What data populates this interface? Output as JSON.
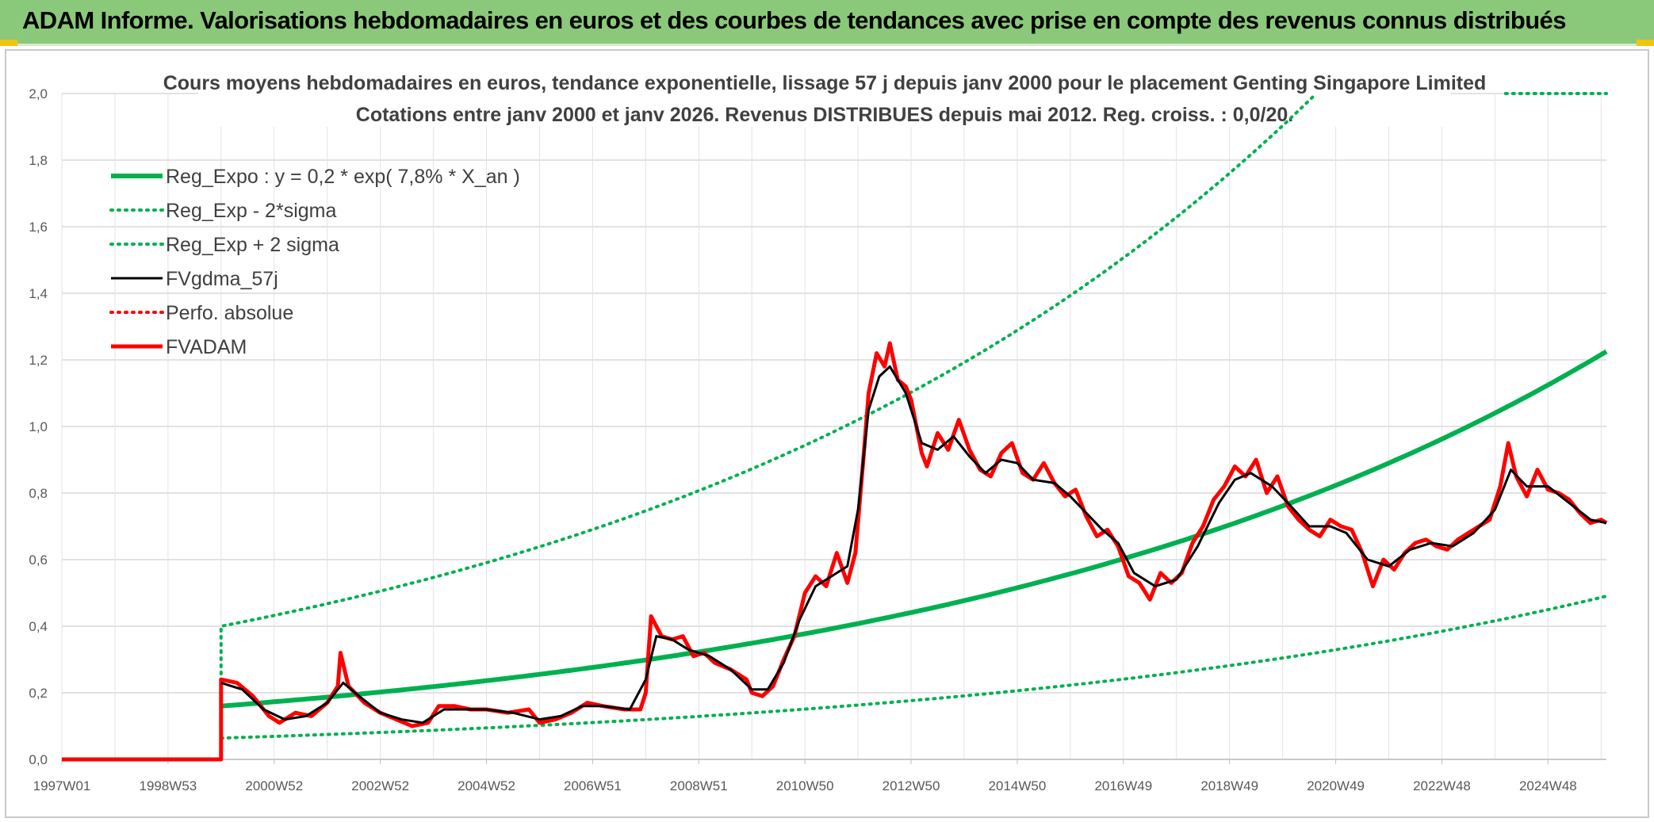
{
  "header": {
    "title": "ADAM Informe. Valorisations hebdomadaires en euros et des courbes de tendances avec prise en compte des revenus connus distribués"
  },
  "chart_data": {
    "type": "line",
    "title_line1": "Cours moyens hebdomadaires en euros, tendance exponentielle, lissage 57 j depuis janv 2000 pour le placement Genting Singapore Limited",
    "title_line2": "Cotations entre janv 2000 et janv 2026. Revenus DISTRIBUES depuis mai 2012. Reg. croiss. : 0,0/20.",
    "ylim": [
      0,
      2.0
    ],
    "xlim": [
      1997.0,
      2026.1
    ],
    "y_ticks": [
      "0,0",
      "0,2",
      "0,4",
      "0,6",
      "0,8",
      "1,0",
      "1,2",
      "1,4",
      "1,6",
      "1,8",
      "2,0"
    ],
    "x_ticks": [
      {
        "label": "1997W01",
        "x": 1997.0
      },
      {
        "label": "1998W53",
        "x": 1999.0
      },
      {
        "label": "2000W52",
        "x": 2001.0
      },
      {
        "label": "2002W52",
        "x": 2003.0
      },
      {
        "label": "2004W52",
        "x": 2005.0
      },
      {
        "label": "2006W51",
        "x": 2007.0
      },
      {
        "label": "2008W51",
        "x": 2009.0
      },
      {
        "label": "2010W50",
        "x": 2011.0
      },
      {
        "label": "2012W50",
        "x": 2013.0
      },
      {
        "label": "2014W50",
        "x": 2015.0
      },
      {
        "label": "2016W49",
        "x": 2017.0
      },
      {
        "label": "2018W49",
        "x": 2019.0
      },
      {
        "label": "2020W49",
        "x": 2021.0
      },
      {
        "label": "2022W48",
        "x": 2023.0
      },
      {
        "label": "2024W48",
        "x": 2025.0
      }
    ],
    "grid": true,
    "legend_position": "top-left",
    "colors": {
      "green": "#00b050",
      "red": "#ff0000",
      "black": "#000000",
      "grid": "#d9d9d9"
    },
    "series": [
      {
        "name": "Reg_Expo : y = 0,2 * exp( 7,8% *  X_an )",
        "style": "solid",
        "color": "#00b050",
        "start": 2000.0,
        "a": 0.16,
        "rate": 0.078
      },
      {
        "name": "Reg_Exp - 2*sigma",
        "style": "dotted",
        "color": "#00b050",
        "start": 2000.0,
        "a": 0.064,
        "rate": 0.078
      },
      {
        "name": "Reg_Exp + 2 sigma",
        "style": "dotted",
        "color": "#00b050",
        "start": 2000.0,
        "a": 0.4,
        "rate": 0.078
      },
      {
        "name": "FVgdma_57j",
        "style": "solid",
        "color": "#000000",
        "width": 3
      },
      {
        "name": "Perfo. absolue",
        "style": "dotted",
        "color": "#ff0000"
      },
      {
        "name": "FVADAM",
        "style": "solid",
        "color": "#ff0000",
        "width": 5
      }
    ],
    "price_points": [
      [
        1997.0,
        0.0
      ],
      [
        2000.0,
        0.0
      ],
      [
        2000.0,
        0.24
      ],
      [
        2000.3,
        0.23
      ],
      [
        2000.6,
        0.19
      ],
      [
        2000.9,
        0.13
      ],
      [
        2001.1,
        0.11
      ],
      [
        2001.4,
        0.14
      ],
      [
        2001.7,
        0.13
      ],
      [
        2002.0,
        0.17
      ],
      [
        2002.2,
        0.22
      ],
      [
        2002.25,
        0.32
      ],
      [
        2002.4,
        0.22
      ],
      [
        2002.7,
        0.17
      ],
      [
        2003.0,
        0.14
      ],
      [
        2003.3,
        0.12
      ],
      [
        2003.6,
        0.1
      ],
      [
        2003.9,
        0.11
      ],
      [
        2004.1,
        0.16
      ],
      [
        2004.4,
        0.16
      ],
      [
        2004.7,
        0.15
      ],
      [
        2005.0,
        0.15
      ],
      [
        2005.4,
        0.14
      ],
      [
        2005.8,
        0.15
      ],
      [
        2006.0,
        0.11
      ],
      [
        2006.3,
        0.12
      ],
      [
        2006.6,
        0.14
      ],
      [
        2006.9,
        0.17
      ],
      [
        2007.2,
        0.16
      ],
      [
        2007.6,
        0.15
      ],
      [
        2007.9,
        0.15
      ],
      [
        2008.0,
        0.2
      ],
      [
        2008.1,
        0.43
      ],
      [
        2008.3,
        0.37
      ],
      [
        2008.5,
        0.36
      ],
      [
        2008.7,
        0.37
      ],
      [
        2008.9,
        0.31
      ],
      [
        2009.1,
        0.32
      ],
      [
        2009.3,
        0.29
      ],
      [
        2009.6,
        0.27
      ],
      [
        2009.9,
        0.24
      ],
      [
        2010.0,
        0.2
      ],
      [
        2010.2,
        0.19
      ],
      [
        2010.4,
        0.22
      ],
      [
        2010.6,
        0.3
      ],
      [
        2010.8,
        0.37
      ],
      [
        2011.0,
        0.5
      ],
      [
        2011.2,
        0.55
      ],
      [
        2011.4,
        0.52
      ],
      [
        2011.6,
        0.62
      ],
      [
        2011.8,
        0.53
      ],
      [
        2011.95,
        0.62
      ],
      [
        2012.1,
        0.9
      ],
      [
        2012.2,
        1.1
      ],
      [
        2012.35,
        1.22
      ],
      [
        2012.5,
        1.18
      ],
      [
        2012.6,
        1.25
      ],
      [
        2012.75,
        1.14
      ],
      [
        2012.9,
        1.12
      ],
      [
        2013.0,
        1.08
      ],
      [
        2013.2,
        0.92
      ],
      [
        2013.3,
        0.88
      ],
      [
        2013.5,
        0.98
      ],
      [
        2013.7,
        0.93
      ],
      [
        2013.9,
        1.02
      ],
      [
        2014.1,
        0.93
      ],
      [
        2014.3,
        0.87
      ],
      [
        2014.5,
        0.85
      ],
      [
        2014.7,
        0.92
      ],
      [
        2014.9,
        0.95
      ],
      [
        2015.1,
        0.86
      ],
      [
        2015.3,
        0.84
      ],
      [
        2015.5,
        0.89
      ],
      [
        2015.7,
        0.83
      ],
      [
        2015.9,
        0.79
      ],
      [
        2016.1,
        0.81
      ],
      [
        2016.3,
        0.73
      ],
      [
        2016.5,
        0.67
      ],
      [
        2016.7,
        0.69
      ],
      [
        2016.9,
        0.64
      ],
      [
        2017.1,
        0.55
      ],
      [
        2017.3,
        0.53
      ],
      [
        2017.5,
        0.48
      ],
      [
        2017.7,
        0.56
      ],
      [
        2017.9,
        0.53
      ],
      [
        2018.1,
        0.56
      ],
      [
        2018.3,
        0.65
      ],
      [
        2018.5,
        0.7
      ],
      [
        2018.7,
        0.78
      ],
      [
        2018.9,
        0.82
      ],
      [
        2019.1,
        0.88
      ],
      [
        2019.3,
        0.85
      ],
      [
        2019.5,
        0.9
      ],
      [
        2019.7,
        0.8
      ],
      [
        2019.9,
        0.85
      ],
      [
        2020.1,
        0.76
      ],
      [
        2020.3,
        0.72
      ],
      [
        2020.5,
        0.69
      ],
      [
        2020.7,
        0.67
      ],
      [
        2020.9,
        0.72
      ],
      [
        2021.1,
        0.7
      ],
      [
        2021.3,
        0.69
      ],
      [
        2021.5,
        0.62
      ],
      [
        2021.7,
        0.52
      ],
      [
        2021.9,
        0.6
      ],
      [
        2022.1,
        0.57
      ],
      [
        2022.3,
        0.62
      ],
      [
        2022.5,
        0.65
      ],
      [
        2022.7,
        0.66
      ],
      [
        2022.9,
        0.64
      ],
      [
        2023.1,
        0.63
      ],
      [
        2023.3,
        0.66
      ],
      [
        2023.5,
        0.68
      ],
      [
        2023.7,
        0.7
      ],
      [
        2023.9,
        0.72
      ],
      [
        2024.1,
        0.82
      ],
      [
        2024.25,
        0.95
      ],
      [
        2024.4,
        0.85
      ],
      [
        2024.6,
        0.79
      ],
      [
        2024.8,
        0.87
      ],
      [
        2025.0,
        0.81
      ],
      [
        2025.2,
        0.8
      ],
      [
        2025.4,
        0.78
      ],
      [
        2025.6,
        0.74
      ],
      [
        2025.8,
        0.71
      ],
      [
        2026.0,
        0.72
      ],
      [
        2026.1,
        0.71
      ]
    ],
    "smooth_points": [
      [
        2000.0,
        0.23
      ],
      [
        2000.4,
        0.21
      ],
      [
        2000.8,
        0.15
      ],
      [
        2001.2,
        0.12
      ],
      [
        2001.6,
        0.13
      ],
      [
        2002.0,
        0.17
      ],
      [
        2002.3,
        0.23
      ],
      [
        2002.6,
        0.19
      ],
      [
        2003.0,
        0.14
      ],
      [
        2003.4,
        0.12
      ],
      [
        2003.8,
        0.11
      ],
      [
        2004.2,
        0.15
      ],
      [
        2004.6,
        0.15
      ],
      [
        2005.0,
        0.15
      ],
      [
        2005.5,
        0.14
      ],
      [
        2006.0,
        0.12
      ],
      [
        2006.4,
        0.13
      ],
      [
        2006.8,
        0.16
      ],
      [
        2007.2,
        0.16
      ],
      [
        2007.7,
        0.15
      ],
      [
        2008.0,
        0.24
      ],
      [
        2008.2,
        0.37
      ],
      [
        2008.5,
        0.36
      ],
      [
        2008.8,
        0.33
      ],
      [
        2009.2,
        0.31
      ],
      [
        2009.6,
        0.27
      ],
      [
        2010.0,
        0.21
      ],
      [
        2010.3,
        0.21
      ],
      [
        2010.6,
        0.29
      ],
      [
        2010.9,
        0.42
      ],
      [
        2011.2,
        0.52
      ],
      [
        2011.5,
        0.55
      ],
      [
        2011.8,
        0.58
      ],
      [
        2012.0,
        0.75
      ],
      [
        2012.2,
        1.05
      ],
      [
        2012.4,
        1.15
      ],
      [
        2012.6,
        1.18
      ],
      [
        2012.9,
        1.1
      ],
      [
        2013.2,
        0.95
      ],
      [
        2013.5,
        0.93
      ],
      [
        2013.8,
        0.97
      ],
      [
        2014.1,
        0.91
      ],
      [
        2014.4,
        0.86
      ],
      [
        2014.7,
        0.9
      ],
      [
        2015.0,
        0.89
      ],
      [
        2015.3,
        0.84
      ],
      [
        2015.7,
        0.83
      ],
      [
        2016.0,
        0.79
      ],
      [
        2016.3,
        0.74
      ],
      [
        2016.6,
        0.69
      ],
      [
        2016.9,
        0.65
      ],
      [
        2017.2,
        0.56
      ],
      [
        2017.6,
        0.52
      ],
      [
        2018.0,
        0.54
      ],
      [
        2018.4,
        0.64
      ],
      [
        2018.8,
        0.77
      ],
      [
        2019.1,
        0.84
      ],
      [
        2019.4,
        0.86
      ],
      [
        2019.8,
        0.82
      ],
      [
        2020.1,
        0.77
      ],
      [
        2020.5,
        0.7
      ],
      [
        2020.9,
        0.7
      ],
      [
        2021.2,
        0.68
      ],
      [
        2021.6,
        0.6
      ],
      [
        2022.0,
        0.58
      ],
      [
        2022.4,
        0.63
      ],
      [
        2022.8,
        0.65
      ],
      [
        2023.2,
        0.64
      ],
      [
        2023.6,
        0.68
      ],
      [
        2024.0,
        0.75
      ],
      [
        2024.3,
        0.87
      ],
      [
        2024.6,
        0.82
      ],
      [
        2025.0,
        0.82
      ],
      [
        2025.4,
        0.77
      ],
      [
        2025.8,
        0.72
      ],
      [
        2026.1,
        0.71
      ]
    ]
  }
}
